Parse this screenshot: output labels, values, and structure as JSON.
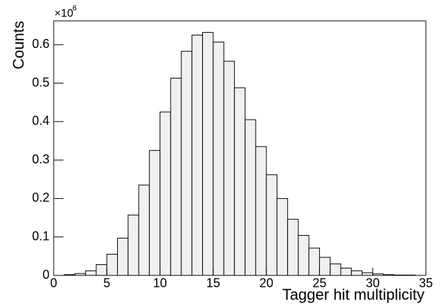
{
  "chart_data": {
    "type": "histogram",
    "x_label": "Tagger hit multiplicity",
    "y_label": "Counts",
    "y_multiplier": "×10",
    "y_multiplier_exponent": "6",
    "bins": [
      0,
      1,
      2,
      3,
      4,
      5,
      6,
      7,
      8,
      9,
      10,
      11,
      12,
      13,
      14,
      15,
      16,
      17,
      18,
      19,
      20,
      21,
      22,
      23,
      24,
      25,
      26,
      27,
      28,
      29,
      30,
      31,
      32,
      33,
      34,
      35
    ],
    "values": [
      0,
      0.002,
      0.005,
      0.012,
      0.028,
      0.055,
      0.097,
      0.157,
      0.235,
      0.325,
      0.425,
      0.513,
      0.583,
      0.625,
      0.632,
      0.607,
      0.557,
      0.488,
      0.405,
      0.335,
      0.262,
      0.2,
      0.146,
      0.104,
      0.071,
      0.047,
      0.03,
      0.019,
      0.012,
      0.007,
      0.004,
      0.002,
      0.001,
      0.001,
      0
    ],
    "color": "#f0f0f0",
    "edge_color": "#000000",
    "xlim": [
      0,
      35
    ],
    "xticks": [
      0,
      5,
      10,
      15,
      20,
      25,
      30,
      35
    ],
    "ylim": [
      0,
      0.662
    ],
    "yticks": [
      0,
      0.1,
      0.2,
      0.3,
      0.4,
      0.5,
      0.6
    ]
  }
}
